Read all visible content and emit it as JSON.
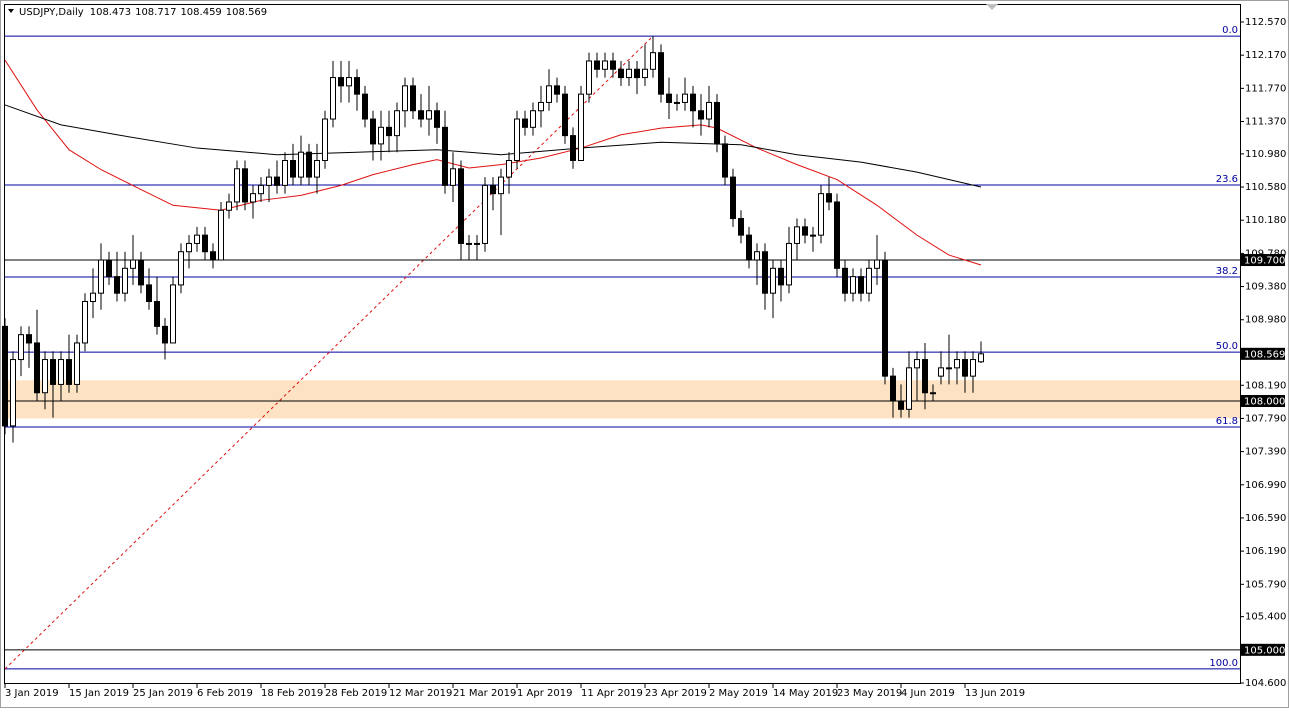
{
  "chart_data": {
    "type": "candlestick",
    "title": "USDJPY,Daily",
    "color_up": "#ffffff",
    "color_down": "#000000",
    "open": [
      108.9,
      107.7,
      108.5,
      108.8,
      108.7,
      108.1,
      108.5,
      108.2,
      108.5,
      108.2,
      108.7,
      109.2,
      109.3,
      109.7,
      109.5,
      109.3,
      109.6,
      109.7,
      109.4,
      109.2,
      108.9,
      108.7,
      109.4,
      109.8,
      109.9,
      110.0,
      109.8,
      109.7,
      110.3,
      110.4,
      110.8,
      110.4,
      110.5,
      110.6,
      110.7,
      110.6,
      110.9,
      110.7,
      111.0,
      110.7,
      110.9,
      111.4,
      111.9,
      111.8,
      111.9,
      111.7,
      111.4,
      111.1,
      111.3,
      111.2,
      111.5,
      111.8,
      111.5,
      111.4,
      111.5,
      111.3,
      110.6,
      110.8,
      109.9,
      109.9,
      109.9,
      110.6,
      110.5,
      110.7,
      110.9,
      111.4,
      111.3,
      111.5,
      111.6,
      111.8,
      111.7,
      111.2,
      110.9,
      111.7,
      112.1,
      112.0,
      112.1,
      112.0,
      111.9,
      112.0,
      111.9,
      112.0,
      112.2,
      111.7,
      111.6,
      111.6,
      111.7,
      111.5,
      111.4,
      111.6,
      111.1,
      110.7,
      110.2,
      110.0,
      109.7,
      109.8,
      109.3,
      109.6,
      109.4,
      109.9,
      110.1,
      110.0,
      110.0,
      110.5,
      110.4,
      109.6,
      109.3,
      109.5,
      109.3,
      109.6,
      109.7,
      108.3,
      108.0,
      107.9,
      108.4,
      108.5,
      108.1,
      108.3,
      108.4,
      108.4,
      108.5,
      108.3,
      108.473
    ],
    "high": [
      109.0,
      108.6,
      108.9,
      108.9,
      109.1,
      108.6,
      108.6,
      108.6,
      108.8,
      108.8,
      109.3,
      109.6,
      109.9,
      109.8,
      109.8,
      109.8,
      110.0,
      109.8,
      109.6,
      109.5,
      109.0,
      109.5,
      109.9,
      110.0,
      110.1,
      110.1,
      109.9,
      110.4,
      110.5,
      110.9,
      110.9,
      110.6,
      110.7,
      110.8,
      110.9,
      111.0,
      111.1,
      111.2,
      111.1,
      111.1,
      111.5,
      112.1,
      112.1,
      112.1,
      112.0,
      111.8,
      111.5,
      111.5,
      111.5,
      111.6,
      111.9,
      111.9,
      111.7,
      111.8,
      111.6,
      111.5,
      111.0,
      110.9,
      110.0,
      110.0,
      110.7,
      110.7,
      110.8,
      111.0,
      111.5,
      111.5,
      111.6,
      111.8,
      112.0,
      111.9,
      111.8,
      111.3,
      111.8,
      112.2,
      112.2,
      112.2,
      112.2,
      112.1,
      112.1,
      112.1,
      112.3,
      112.4,
      112.3,
      111.9,
      111.7,
      111.9,
      111.8,
      111.7,
      111.8,
      111.7,
      111.2,
      110.8,
      110.3,
      110.1,
      109.9,
      109.9,
      109.7,
      109.7,
      110.1,
      110.2,
      110.2,
      110.1,
      110.6,
      110.7,
      110.5,
      109.7,
      109.6,
      109.6,
      109.7,
      110.0,
      109.8,
      108.4,
      108.2,
      108.6,
      108.6,
      108.7,
      108.2,
      108.6,
      108.8,
      108.6,
      108.6,
      108.6,
      108.717
    ],
    "low": [
      107.6,
      107.5,
      108.3,
      108.4,
      108.0,
      107.9,
      107.8,
      108.0,
      108.1,
      108.1,
      108.6,
      109.0,
      109.1,
      109.4,
      109.2,
      109.2,
      109.4,
      109.3,
      109.1,
      108.8,
      108.5,
      108.7,
      109.3,
      109.6,
      109.8,
      109.7,
      109.6,
      109.7,
      110.2,
      110.3,
      110.3,
      110.2,
      110.4,
      110.4,
      110.5,
      110.5,
      110.6,
      110.6,
      110.6,
      110.5,
      110.8,
      111.3,
      111.6,
      111.6,
      111.5,
      111.3,
      110.9,
      110.9,
      111.0,
      111.0,
      111.3,
      111.4,
      111.3,
      111.2,
      111.1,
      110.5,
      110.4,
      109.7,
      109.7,
      109.7,
      109.8,
      110.3,
      110.0,
      110.5,
      110.8,
      111.2,
      111.2,
      111.3,
      111.5,
      111.6,
      111.1,
      110.8,
      110.9,
      111.6,
      111.9,
      111.9,
      111.9,
      111.8,
      111.8,
      111.7,
      111.8,
      111.9,
      111.6,
      111.4,
      111.5,
      111.5,
      111.3,
      111.2,
      111.3,
      111.0,
      110.6,
      110.1,
      109.9,
      109.6,
      109.4,
      109.1,
      109.0,
      109.2,
      109.3,
      109.7,
      109.9,
      109.8,
      109.9,
      110.3,
      109.5,
      109.2,
      109.2,
      109.2,
      109.2,
      109.4,
      108.2,
      107.8,
      107.8,
      107.8,
      108.0,
      107.9,
      108.0,
      108.2,
      108.2,
      108.2,
      108.1,
      108.1,
      108.459
    ],
    "close": [
      107.7,
      108.5,
      108.8,
      108.7,
      108.1,
      108.5,
      108.2,
      108.5,
      108.2,
      108.7,
      109.2,
      109.3,
      109.7,
      109.5,
      109.3,
      109.6,
      109.7,
      109.4,
      109.2,
      108.9,
      108.7,
      109.4,
      109.8,
      109.9,
      110.0,
      109.8,
      109.7,
      110.3,
      110.4,
      110.8,
      110.4,
      110.5,
      110.6,
      110.7,
      110.6,
      110.9,
      110.7,
      111.0,
      110.7,
      110.9,
      111.4,
      111.9,
      111.8,
      111.9,
      111.7,
      111.4,
      111.1,
      111.3,
      111.2,
      111.5,
      111.8,
      111.5,
      111.4,
      111.5,
      111.3,
      110.6,
      110.8,
      109.9,
      109.9,
      109.9,
      110.6,
      110.5,
      110.7,
      110.9,
      111.4,
      111.3,
      111.5,
      111.6,
      111.8,
      111.7,
      111.2,
      110.9,
      111.7,
      112.1,
      112.0,
      112.1,
      112.0,
      111.9,
      112.0,
      111.9,
      112.0,
      112.2,
      111.7,
      111.6,
      111.6,
      111.7,
      111.5,
      111.4,
      111.6,
      111.1,
      110.7,
      110.2,
      110.0,
      109.7,
      109.8,
      109.3,
      109.6,
      109.4,
      109.9,
      110.1,
      110.0,
      110.0,
      110.5,
      110.4,
      109.6,
      109.3,
      109.5,
      109.3,
      109.6,
      109.7,
      108.3,
      108.0,
      107.9,
      108.4,
      108.5,
      108.1,
      108.1,
      108.4,
      108.4,
      108.5,
      108.3,
      108.5,
      108.569
    ],
    "xlim": [
      0,
      154
    ],
    "xticks": [
      {
        "value": 0,
        "label": "3 Jan 2019"
      },
      {
        "value": 8,
        "label": "15 Jan 2019"
      },
      {
        "value": 16,
        "label": "25 Jan 2019"
      },
      {
        "value": 24,
        "label": "6 Feb 2019"
      },
      {
        "value": 32,
        "label": "18 Feb 2019"
      },
      {
        "value": 40,
        "label": "28 Feb 2019"
      },
      {
        "value": 48,
        "label": "12 Mar 2019"
      },
      {
        "value": 56,
        "label": "21 Mar 2019"
      },
      {
        "value": 64,
        "label": "1 Apr 2019"
      },
      {
        "value": 72,
        "label": "11 Apr 2019"
      },
      {
        "value": 80,
        "label": "23 Apr 2019"
      },
      {
        "value": 88,
        "label": "2 May 2019"
      },
      {
        "value": 96,
        "label": "14 May 2019"
      },
      {
        "value": 104,
        "label": "23 May 2019"
      },
      {
        "value": 112,
        "label": "4 Jun 2019"
      },
      {
        "value": 120,
        "label": "13 Jun 2019"
      }
    ],
    "ylim": [
      104.6,
      112.787
    ],
    "yticks": [
      {
        "value": 112.57,
        "label": "112.570"
      },
      {
        "value": 112.17,
        "label": "112.170"
      },
      {
        "value": 111.77,
        "label": "111.770"
      },
      {
        "value": 111.37,
        "label": "111.370"
      },
      {
        "value": 110.98,
        "label": "110.980"
      },
      {
        "value": 110.58,
        "label": "110.580"
      },
      {
        "value": 110.18,
        "label": "110.180"
      },
      {
        "value": 109.78,
        "label": "109.780"
      },
      {
        "value": 109.38,
        "label": "109.380"
      },
      {
        "value": 108.98,
        "label": "108.980"
      },
      {
        "value": 108.19,
        "label": "108.190"
      },
      {
        "value": 107.79,
        "label": "107.790"
      },
      {
        "value": 107.39,
        "label": "107.390"
      },
      {
        "value": 106.99,
        "label": "106.990"
      },
      {
        "value": 106.59,
        "label": "106.590"
      },
      {
        "value": 106.19,
        "label": "106.190"
      },
      {
        "value": 105.79,
        "label": "105.790"
      },
      {
        "value": 105.4,
        "label": "105.400"
      },
      {
        "value": 104.6,
        "label": "104.600"
      }
    ],
    "moving_averages": [
      {
        "color": "#e01010",
        "x": [
          0,
          4,
          8,
          12,
          17,
          21,
          27,
          32,
          37,
          42,
          46,
          51,
          54,
          58,
          62,
          67,
          72,
          77,
          82,
          87,
          89,
          94,
          99,
          104,
          109,
          114,
          118,
          122
        ],
        "values": [
          112.11,
          111.51,
          111.03,
          110.79,
          110.55,
          110.36,
          110.3,
          110.42,
          110.48,
          110.6,
          110.73,
          110.85,
          110.91,
          110.81,
          110.85,
          110.93,
          111.05,
          111.21,
          111.29,
          111.33,
          111.29,
          111.05,
          110.85,
          110.67,
          110.36,
          110.0,
          109.76,
          109.64
        ]
      },
      {
        "color": "#000000",
        "x": [
          0,
          7,
          14,
          24,
          34,
          44,
          54,
          62,
          72,
          82,
          92,
          99,
          107,
          114,
          122
        ],
        "values": [
          111.57,
          111.33,
          111.21,
          111.05,
          110.97,
          111.0,
          111.03,
          110.97,
          111.05,
          111.12,
          111.09,
          110.97,
          110.88,
          110.76,
          110.58
        ]
      }
    ],
    "fib": {
      "color": "#0000a0",
      "line_color": "#e01010",
      "x": [
        0,
        81
      ],
      "values": [
        104.77,
        112.4
      ],
      "levels": [
        {
          "value": 112.4,
          "label": "0.0"
        },
        {
          "value": 110.605,
          "label": "23.6"
        },
        {
          "value": 109.496,
          "label": "38.2"
        },
        {
          "value": 108.59,
          "label": "50.0"
        },
        {
          "value": 107.687,
          "label": "61.8"
        },
        {
          "value": 104.77,
          "label": "100.0"
        }
      ]
    },
    "hlines": [
      {
        "value": 109.7,
        "label": "109.700"
      },
      {
        "value": 108.0,
        "label": "108.000"
      },
      {
        "value": 105.0,
        "label": "105.000"
      }
    ],
    "zone": {
      "range": [
        107.79,
        108.25
      ],
      "color": "#fde3c4"
    }
  }
}
